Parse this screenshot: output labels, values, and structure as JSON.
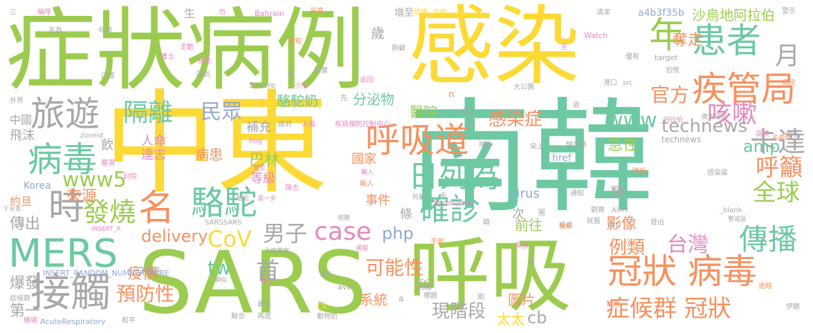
{
  "palette": {
    "green": "#9ccc4f",
    "yellow": "#fdd935",
    "teal": "#6cc9a2",
    "orange": "#f6915f",
    "gray": "#a8a8a8",
    "pink": "#e488c1",
    "blue": "#92a8d1"
  },
  "words": [
    {
      "text": "中東",
      "color": "yellow"
    },
    {
      "text": "南韓",
      "color": "teal"
    },
    {
      "text": "SARS",
      "color": "green"
    },
    {
      "text": "呼吸",
      "color": "green"
    },
    {
      "text": "感染",
      "color": "yellow"
    },
    {
      "text": "症狀病例",
      "color": "green"
    },
    {
      "text": "MERS",
      "color": "teal"
    },
    {
      "text": "接觸",
      "color": "gray"
    },
    {
      "text": "冠狀 病毒",
      "color": "orange"
    },
    {
      "text": "疾管局",
      "color": "orange"
    },
    {
      "text": "患者",
      "color": "teal"
    },
    {
      "text": "旅遊",
      "color": "gray"
    },
    {
      "text": "病毒",
      "color": "teal"
    },
    {
      "text": "時",
      "color": "gray"
    },
    {
      "text": "名",
      "color": "orange"
    },
    {
      "text": "駱駝",
      "color": "teal"
    },
    {
      "text": "呼吸道",
      "color": "orange"
    },
    {
      "text": "日列為",
      "color": "teal"
    },
    {
      "text": "確診",
      "color": "teal"
    },
    {
      "text": "年",
      "color": "green"
    },
    {
      "text": "月",
      "color": "gray"
    },
    {
      "text": "咳嗽",
      "color": "pink"
    },
    {
      "text": "官方",
      "color": "orange"
    },
    {
      "text": "卡達",
      "color": "gray"
    },
    {
      "text": "隔離",
      "color": "teal"
    },
    {
      "text": "民眾",
      "color": "blue"
    },
    {
      "text": "發燒",
      "color": "green"
    },
    {
      "text": "CoV",
      "color": "yellow"
    },
    {
      "text": "男子",
      "color": "gray"
    },
    {
      "text": "case",
      "color": "pink"
    },
    {
      "text": "傳播",
      "color": "teal"
    },
    {
      "text": "全球",
      "color": "green"
    },
    {
      "text": "呼籲",
      "color": "orange"
    },
    {
      "text": "台灣",
      "color": "pink"
    },
    {
      "text": "例類",
      "color": "orange"
    },
    {
      "text": "症候群 冠狀",
      "color": "orange"
    },
    {
      "text": "technews",
      "color": "gray"
    },
    {
      "text": "www",
      "color": "teal"
    },
    {
      "text": "感染症",
      "color": "orange"
    },
    {
      "text": "tw",
      "color": "teal"
    },
    {
      "text": "可能性",
      "color": "orange"
    },
    {
      "text": "首",
      "color": "gray"
    },
    {
      "text": "預防性",
      "color": "orange"
    },
    {
      "text": "delivery",
      "color": "orange"
    },
    {
      "text": "php",
      "color": "blue"
    },
    {
      "text": "www5",
      "color": "green"
    },
    {
      "text": "來源",
      "color": "orange"
    },
    {
      "text": "傳出",
      "color": "gray"
    },
    {
      "text": "疫情",
      "color": "orange"
    },
    {
      "text": "爆發",
      "color": "gray"
    },
    {
      "text": "第一",
      "color": "gray"
    },
    {
      "text": "現階段",
      "color": "gray"
    },
    {
      "text": "cb",
      "color": "gray"
    },
    {
      "text": "太太",
      "color": "yellow"
    },
    {
      "text": "圖片",
      "color": "orange"
    },
    {
      "text": "系統",
      "color": "orange"
    },
    {
      "text": "影像",
      "color": "orange"
    },
    {
      "text": "前往",
      "color": "green"
    },
    {
      "text": "急性",
      "color": "green"
    },
    {
      "text": "amp",
      "color": "teal"
    },
    {
      "text": "奪走",
      "color": "orange"
    },
    {
      "text": "沙烏地阿拉伯",
      "color": "green"
    },
    {
      "text": "分泌物",
      "color": "teal"
    },
    {
      "text": "駱駝奶",
      "color": "teal"
    },
    {
      "text": "醫院",
      "color": "green"
    },
    {
      "text": "國家",
      "color": "orange"
    },
    {
      "text": "巴林",
      "color": "green"
    },
    {
      "text": "等級",
      "color": "pink"
    },
    {
      "text": "事件",
      "color": "orange"
    },
    {
      "text": "條",
      "color": "gray"
    },
    {
      "text": "virus",
      "color": "blue"
    },
    {
      "text": "次",
      "color": "gray"
    },
    {
      "text": "類",
      "color": "gray"
    },
    {
      "text": "人命",
      "color": "pink"
    },
    {
      "text": "達志",
      "color": "pink"
    },
    {
      "text": "病患",
      "color": "orange"
    },
    {
      "text": "補充",
      "color": "gray"
    },
    {
      "text": "飲",
      "color": "gray"
    },
    {
      "text": "Korea",
      "color": "blue"
    },
    {
      "text": "中國",
      "color": "gray"
    },
    {
      "text": "飛沫",
      "color": "gray"
    },
    {
      "text": "約旦",
      "color": "orange"
    },
    {
      "text": "歲",
      "color": "gray"
    },
    {
      "text": "增至",
      "color": "gray"
    },
    {
      "text": "a4b3f35b",
      "color": "blue"
    },
    {
      "text": "生",
      "color": "gray"
    },
    {
      "text": "technews",
      "color": "gray"
    },
    {
      "text": "href",
      "color": "blue"
    },
    {
      "text": "AcuteRespiratory",
      "color": "blue"
    },
    {
      "text": "INSERT_RANDOM_NUMBER_HERE",
      "color": "blue"
    },
    {
      "text": "Syndrome",
      "color": "pink"
    },
    {
      "text": "SARSSARS",
      "color": "gray"
    },
    {
      "text": "Severe",
      "color": "gray"
    },
    {
      "text": "zoneid",
      "color": "gray"
    },
    {
      "text": "img",
      "color": "pink"
    },
    {
      "text": "Bahrain",
      "color": "pink"
    },
    {
      "text": "Watch",
      "color": "pink"
    },
    {
      "text": "target",
      "color": "gray"
    },
    {
      "text": "Alert",
      "color": "gray"
    },
    {
      "text": "_blank",
      "color": "gray"
    },
    {
      "text": "INSERT_R",
      "color": "pink"
    },
    {
      "text": "avw",
      "color": "gray"
    },
    {
      "text": "CDC",
      "color": "gray"
    },
    {
      "text": "ck",
      "color": "yellow"
    },
    {
      "text": "n",
      "color": "orange"
    },
    {
      "text": "a",
      "color": "gray"
    },
    {
      "text": "三",
      "color": "gray"
    },
    {
      "text": "稱呼",
      "color": "pink"
    },
    {
      "text": "名為",
      "color": "gray"
    },
    {
      "text": "母須",
      "color": "gray"
    },
    {
      "text": "勿",
      "color": "pink"
    },
    {
      "text": "告知",
      "color": "orange"
    },
    {
      "text": "平息",
      "color": "orange"
    },
    {
      "text": "防護",
      "color": "yellow"
    },
    {
      "text": "示範",
      "color": "yellow"
    },
    {
      "text": "清潔",
      "color": "gray"
    },
    {
      "text": "警示",
      "color": "gray"
    },
    {
      "text": "病房",
      "color": "orange"
    },
    {
      "text": "主動",
      "color": "pink"
    },
    {
      "text": "醫生",
      "color": "pink"
    },
    {
      "text": "護士",
      "color": "pink"
    },
    {
      "text": "口罩",
      "color": "gray"
    },
    {
      "text": "回到",
      "color": "gray"
    },
    {
      "text": "證實",
      "color": "gray"
    },
    {
      "text": "照顧",
      "color": "gray"
    },
    {
      "text": "全",
      "color": "pink"
    },
    {
      "text": "恐慌",
      "color": "gray"
    },
    {
      "text": "優有",
      "color": "gray"
    },
    {
      "text": "港口",
      "color": "gray"
    },
    {
      "text": "大公園",
      "color": "gray"
    },
    {
      "text": "外界",
      "color": "gray"
    },
    {
      "text": "小心",
      "color": "pink"
    },
    {
      "text": "返回",
      "color": "pink"
    },
    {
      "text": "先",
      "color": "gray"
    },
    {
      "text": "男性",
      "color": "gray"
    },
    {
      "text": "場",
      "color": "gray"
    },
    {
      "text": "疾病預防控制中心",
      "color": "pink"
    },
    {
      "text": "政府",
      "color": "gray"
    },
    {
      "text": "人員",
      "color": "pink"
    },
    {
      "text": "返",
      "color": "gray"
    },
    {
      "text": "廣東隔壁",
      "color": "gray"
    },
    {
      "text": "高燒",
      "color": "pink"
    },
    {
      "text": "衛生",
      "color": "gray"
    },
    {
      "text": "感染區",
      "color": "gray"
    },
    {
      "text": "降低",
      "color": "orange"
    },
    {
      "text": "染上",
      "color": "gray"
    },
    {
      "text": "隨處",
      "color": "gray"
    },
    {
      "text": "類流感",
      "color": "gray"
    },
    {
      "text": "腹瀉",
      "color": "pink"
    },
    {
      "text": "封院",
      "color": "pink"
    },
    {
      "text": "陳志",
      "color": "pink"
    },
    {
      "text": "輸入",
      "color": "orange"
    },
    {
      "text": "病",
      "color": "gray"
    },
    {
      "text": "通知",
      "color": "gray"
    },
    {
      "text": "疫病",
      "color": "gray"
    },
    {
      "text": "圖",
      "color": "gray"
    },
    {
      "text": "觀察",
      "color": "gray"
    },
    {
      "text": "就醫",
      "color": "gray"
    },
    {
      "text": "發出",
      "color": "gray"
    },
    {
      "text": "警戒區",
      "color": "gray"
    },
    {
      "text": "途經",
      "color": "orange"
    },
    {
      "text": "治療",
      "color": "orange"
    },
    {
      "text": "伊朗",
      "color": "gray"
    },
    {
      "text": "聯合",
      "color": "gray"
    },
    {
      "text": "再度",
      "color": "gray"
    },
    {
      "text": "動物奶",
      "color": "gray"
    },
    {
      "text": "最先",
      "color": "gray"
    },
    {
      "text": "家族",
      "color": "pink"
    },
    {
      "text": "手部",
      "color": "orange"
    },
    {
      "text": "剛",
      "color": "gray"
    },
    {
      "text": "標題",
      "color": "gray"
    },
    {
      "text": "回國",
      "color": "gray"
    },
    {
      "text": "機場",
      "color": "gray"
    },
    {
      "text": "和平",
      "color": "gray"
    },
    {
      "text": "症候群",
      "color": "gray"
    },
    {
      "text": "新聞稿",
      "color": "gray"
    },
    {
      "text": "類似",
      "color": "gray"
    },
    {
      "text": "戴上",
      "color": "pink"
    },
    {
      "text": "發布",
      "color": "gray"
    },
    {
      "text": "通報",
      "color": "pink"
    },
    {
      "text": "治療藥劑",
      "color": "gray"
    },
    {
      "text": "進一步",
      "color": "pink"
    },
    {
      "text": "下半年",
      "color": "gray"
    },
    {
      "text": "阿曼",
      "color": "gray"
    },
    {
      "text": "韓",
      "color": "gray"
    },
    {
      "text": "輸入",
      "color": "pink"
    },
    {
      "text": "檢驗",
      "color": "gray"
    },
    {
      "text": "阿拉伯",
      "color": "pink"
    },
    {
      "text": "非",
      "color": "gray"
    },
    {
      "text": "總計",
      "color": "gray"
    },
    {
      "text": "src",
      "color": "gray"
    },
    {
      "text": "駱駝",
      "color": "gray"
    },
    {
      "text": "養生",
      "color": "pink"
    },
    {
      "text": "蘭",
      "color": "gray"
    },
    {
      "text": "名病例",
      "color": "orange"
    },
    {
      "text": "檢疫",
      "color": "orange"
    }
  ]
}
